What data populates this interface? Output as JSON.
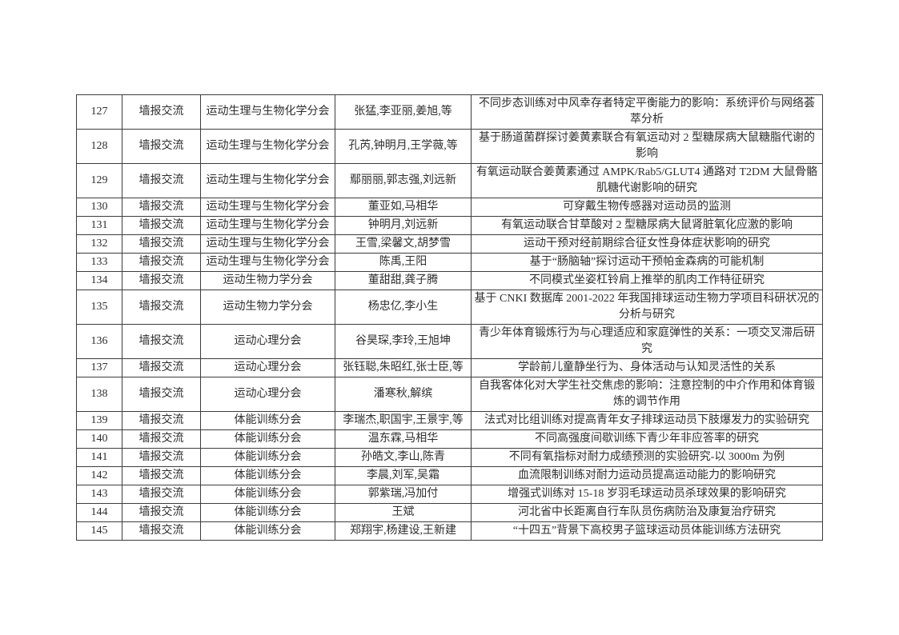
{
  "page": {
    "background_color": "#ffffff",
    "text_color": "#2e2e2e",
    "border_color": "#3d3d3d"
  },
  "table": {
    "rows": [
      {
        "num": "127",
        "type": "墙报交流",
        "branch": "运动生理与生物化学分会",
        "authors": "张猛,李亚丽,姜旭,等",
        "title": "不同步态训练对中风幸存者特定平衡能力的影响：系统评价与网络荟萃分析"
      },
      {
        "num": "128",
        "type": "墙报交流",
        "branch": "运动生理与生物化学分会",
        "authors": "孔芮,钟明月,王学薇,等",
        "title": "基于肠道菌群探讨姜黄素联合有氧运动对 2 型糖尿病大鼠糖脂代谢的影响"
      },
      {
        "num": "129",
        "type": "墙报交流",
        "branch": "运动生理与生物化学分会",
        "authors": "鄢丽丽,郭志强,刘远新",
        "title": "有氧运动联合姜黄素通过 AMPK/Rab5/GLUT4 通路对 T2DM 大鼠骨骼肌糖代谢影响的研究"
      },
      {
        "num": "130",
        "type": "墙报交流",
        "branch": "运动生理与生物化学分会",
        "authors": "董亚如,马相华",
        "title": "可穿戴生物传感器对运动员的监测"
      },
      {
        "num": "131",
        "type": "墙报交流",
        "branch": "运动生理与生物化学分会",
        "authors": "钟明月,刘远新",
        "title": "有氧运动联合甘草酸对 2 型糖尿病大鼠肾脏氧化应激的影响"
      },
      {
        "num": "132",
        "type": "墙报交流",
        "branch": "运动生理与生物化学分会",
        "authors": "王雪,梁馨文,胡梦雪",
        "title": "运动干预对经前期综合征女性身体症状影响的研究"
      },
      {
        "num": "133",
        "type": "墙报交流",
        "branch": "运动生理与生物化学分会",
        "authors": "陈禹,王阳",
        "title": "基于“肠脑轴”探讨运动干预帕金森病的可能机制"
      },
      {
        "num": "134",
        "type": "墙报交流",
        "branch": "运动生物力学分会",
        "authors": "董甜甜,龚子腾",
        "title": "不同模式坐姿杠铃肩上推举的肌肉工作特征研究"
      },
      {
        "num": "135",
        "type": "墙报交流",
        "branch": "运动生物力学分会",
        "authors": "杨忠亿,李小生",
        "title": "基于 CNKI 数据库 2001-2022 年我国排球运动生物力学项目科研状况的分析与研究"
      },
      {
        "num": "136",
        "type": "墙报交流",
        "branch": "运动心理分会",
        "authors": "谷昊琛,李玲,王旭坤",
        "title": "青少年体育锻炼行为与心理适应和家庭弹性的关系：一项交叉滞后研究"
      },
      {
        "num": "137",
        "type": "墙报交流",
        "branch": "运动心理分会",
        "authors": "张钰聪,朱昭红,张士臣,等",
        "title": "学龄前儿童静坐行为、身体活动与认知灵活性的关系"
      },
      {
        "num": "138",
        "type": "墙报交流",
        "branch": "运动心理分会",
        "authors": "潘寒秋,解缤",
        "title": "自我客体化对大学生社交焦虑的影响：注意控制的中介作用和体育锻炼的调节作用"
      },
      {
        "num": "139",
        "type": "墙报交流",
        "branch": "体能训练分会",
        "authors": "李瑞杰,职国宇,王景宇,等",
        "title": "法式对比组训练对提高青年女子排球运动员下肢爆发力的实验研究"
      },
      {
        "num": "140",
        "type": "墙报交流",
        "branch": "体能训练分会",
        "authors": "温东霖,马相华",
        "title": "不同高强度间歇训练下青少年非应答率的研究"
      },
      {
        "num": "141",
        "type": "墙报交流",
        "branch": "体能训练分会",
        "authors": "孙皓文,李山,陈青",
        "title": "不同有氧指标对耐力成绩预测的实验研究-以 3000m 为例"
      },
      {
        "num": "142",
        "type": "墙报交流",
        "branch": "体能训练分会",
        "authors": "李晨,刘军,吴霜",
        "title": "血流限制训练对耐力运动员提高运动能力的影响研究"
      },
      {
        "num": "143",
        "type": "墙报交流",
        "branch": "体能训练分会",
        "authors": "郭紫瑞,冯加付",
        "title": "增强式训练对 15-18 岁羽毛球运动员杀球效果的影响研究"
      },
      {
        "num": "144",
        "type": "墙报交流",
        "branch": "体能训练分会",
        "authors": "王斌",
        "title": "河北省中长距离自行车队员伤病防治及康复治疗研究"
      },
      {
        "num": "145",
        "type": "墙报交流",
        "branch": "体能训练分会",
        "authors": "郑翔宇,杨建设,王新建",
        "title": "“十四五”背景下高校男子篮球运动员体能训练方法研究"
      }
    ]
  }
}
